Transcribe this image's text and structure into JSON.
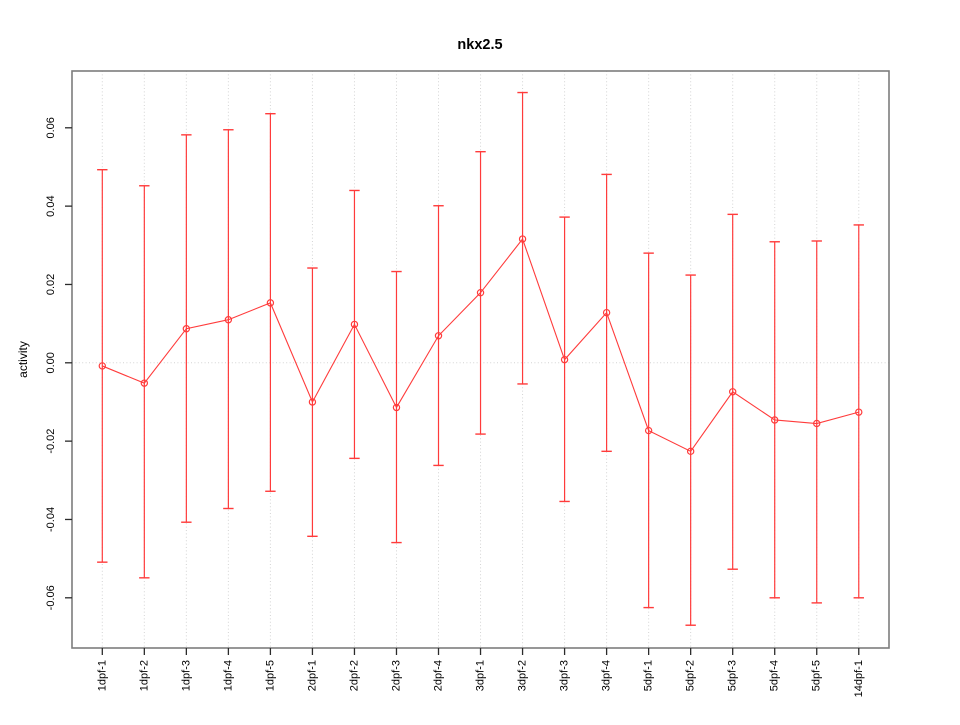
{
  "page": {
    "background": "#ffffff",
    "description": "R-style statistical plot: mean activity with error bars per sample"
  },
  "chart_data": {
    "type": "line",
    "title": "nkx2.5",
    "xlabel": "",
    "ylabel": "activity",
    "legend": "none",
    "grid": {
      "vertical": "dotted at every category",
      "horizontal": "dotted at y=0"
    },
    "categories": [
      "1dpf-1",
      "1dpf-2",
      "1dpf-3",
      "1dpf-4",
      "1dpf-5",
      "2dpf-1",
      "2dpf-2",
      "2dpf-3",
      "2dpf-4",
      "3dpf-1",
      "3dpf-2",
      "3dpf-3",
      "3dpf-4",
      "5dpf-1",
      "5dpf-2",
      "5dpf-3",
      "5dpf-4",
      "5dpf-5",
      "14dpf-1"
    ],
    "series": [
      {
        "name": "activity",
        "marker": "open-circle",
        "values": [
          -0.0008,
          -0.0052,
          0.0087,
          0.011,
          0.0153,
          -0.01,
          0.0098,
          -0.0114,
          0.0069,
          0.0179,
          0.0316,
          0.0008,
          0.0128,
          -0.0173,
          -0.0226,
          -0.0074,
          -0.0146,
          -0.0155,
          -0.0126
        ],
        "error_upper": [
          0.0493,
          0.0452,
          0.0582,
          0.0595,
          0.0636,
          0.0242,
          0.044,
          0.0233,
          0.0401,
          0.0539,
          0.069,
          0.0372,
          0.0481,
          0.028,
          0.0224,
          0.0379,
          0.0309,
          0.0311,
          0.0352
        ],
        "error_lower": [
          -0.0509,
          -0.0549,
          -0.0407,
          -0.0372,
          -0.0328,
          -0.0443,
          -0.0244,
          -0.0459,
          -0.0262,
          -0.0182,
          -0.0054,
          -0.0354,
          -0.0226,
          -0.0625,
          -0.067,
          -0.0527,
          -0.06,
          -0.0613,
          -0.06
        ]
      }
    ],
    "y_tick_values": [
      -0.06,
      -0.04,
      -0.02,
      0.0,
      0.02,
      0.04,
      0.06
    ],
    "y_tick_labels": [
      "-0.06",
      "-0.04",
      "-0.02",
      "0.00",
      "0.02",
      "0.04",
      "0.06"
    ],
    "ylim": [
      -0.0728,
      0.0745
    ],
    "colors": {
      "series": "#ff3b3b",
      "frame": "#7d7d7d",
      "tick": "#2b2b2b",
      "grid": "#d4d4d4",
      "text": "#000000"
    }
  }
}
